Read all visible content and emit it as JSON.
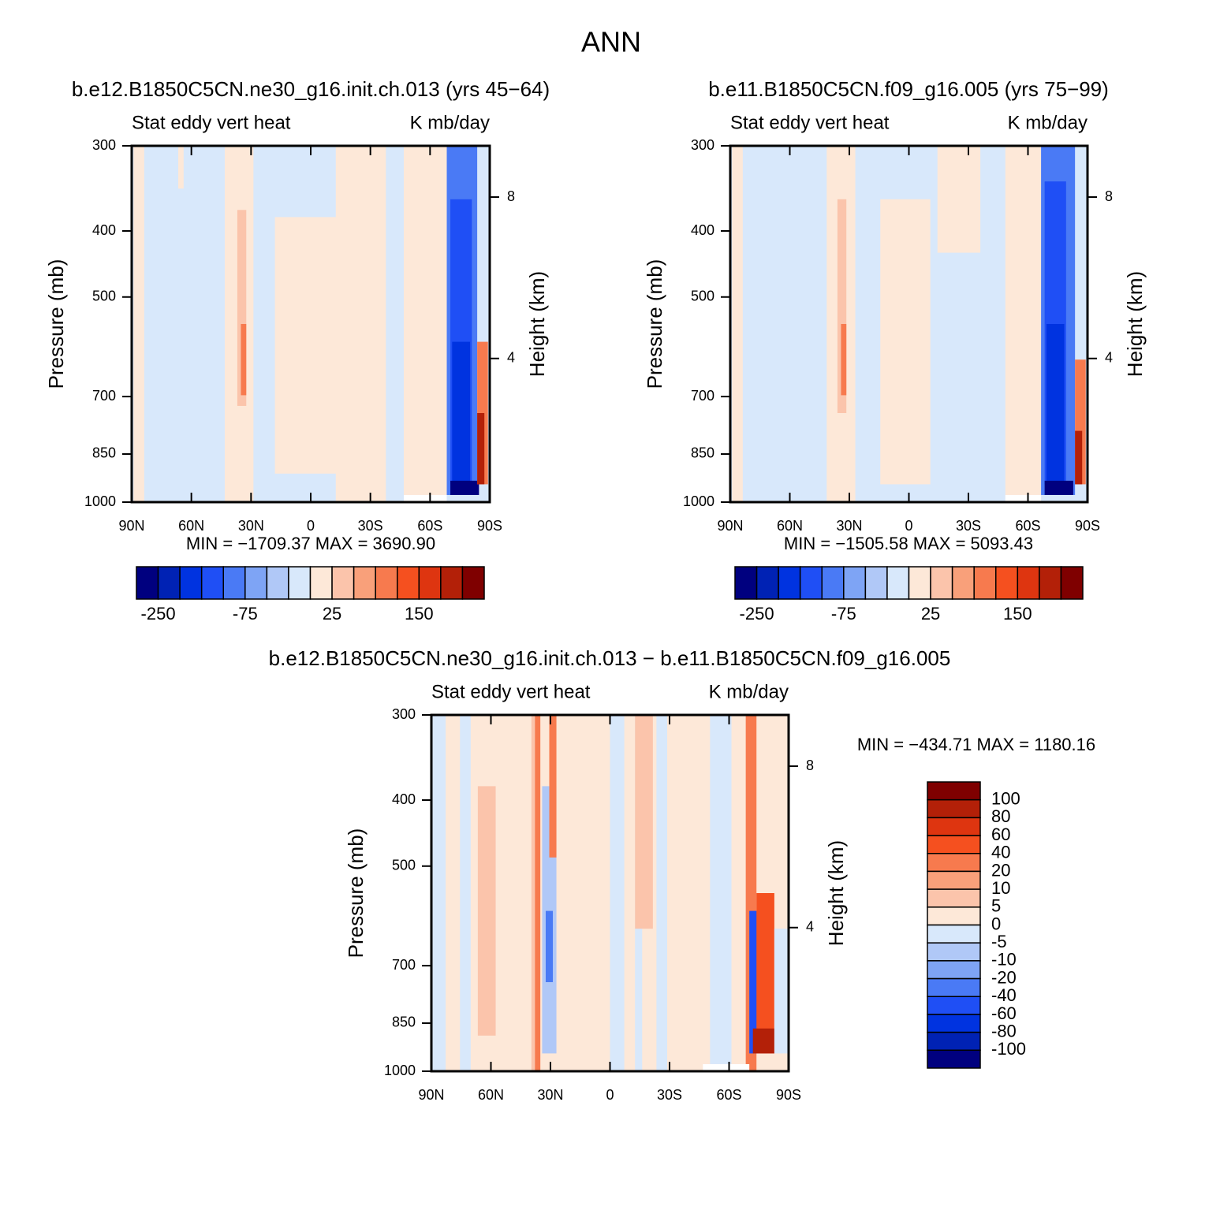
{
  "title": "ANN",
  "chart_data": [
    {
      "type": "contour",
      "title": "b.e12.B1850C5CN.ne30_g16.init.ch.013 (yrs 45−64)",
      "subtitle_left": "Stat eddy vert heat",
      "subtitle_right": "K mb/day",
      "ylabel": "Pressure (mb)",
      "y2label": "Height (km)",
      "xlim": [
        90,
        -90
      ],
      "xticks": [
        {
          "value": 90,
          "label": "90N"
        },
        {
          "value": 60,
          "label": "60N"
        },
        {
          "value": 30,
          "label": "30N"
        },
        0,
        {
          "value": -30,
          "label": "30S"
        },
        {
          "value": -60,
          "label": "60S"
        },
        {
          "value": -90,
          "label": "90S"
        }
      ],
      "ylim": [
        1000,
        300
      ],
      "ylog": true,
      "yticks": [
        300,
        400,
        500,
        700,
        850,
        1000
      ],
      "y2lim": [
        0.44,
        9.27
      ],
      "y2ticks": [
        4,
        8
      ],
      "stats": "MIN = −1709.37   MAX = 3690.90",
      "colorbar": {
        "orientation": "horizontal",
        "colors": [
          "#00007f",
          "#0022b4",
          "#0033e0",
          "#1f4ff5",
          "#4a7af5",
          "#7ea4f5",
          "#b0c8f7",
          "#d8e8fb",
          "#fde8d8",
          "#fbc4ab",
          "#f9a07a",
          "#f77a4e",
          "#f5501f",
          "#de3510",
          "#b32008",
          "#7f0000"
        ],
        "levels": [
          -250,
          -75,
          25,
          150
        ]
      }
    },
    {
      "type": "contour",
      "title": "b.e11.B1850C5CN.f09_g16.005 (yrs 75−99)",
      "subtitle_left": "Stat eddy vert heat",
      "subtitle_right": "K mb/day",
      "ylabel": "Pressure (mb)",
      "y2label": "Height (km)",
      "xlim": [
        90,
        -90
      ],
      "xticks": [
        {
          "value": 90,
          "label": "90N"
        },
        {
          "value": 60,
          "label": "60N"
        },
        {
          "value": 30,
          "label": "30N"
        },
        0,
        {
          "value": -30,
          "label": "30S"
        },
        {
          "value": -60,
          "label": "60S"
        },
        {
          "value": -90,
          "label": "90S"
        }
      ],
      "ylim": [
        1000,
        300
      ],
      "ylog": true,
      "yticks": [
        300,
        400,
        500,
        700,
        850,
        1000
      ],
      "y2lim": [
        0.44,
        9.27
      ],
      "y2ticks": [
        4,
        8
      ],
      "stats": "MIN = −1505.58   MAX = 5093.43",
      "colorbar": {
        "orientation": "horizontal",
        "colors": [
          "#00007f",
          "#0022b4",
          "#0033e0",
          "#1f4ff5",
          "#4a7af5",
          "#7ea4f5",
          "#b0c8f7",
          "#d8e8fb",
          "#fde8d8",
          "#fbc4ab",
          "#f9a07a",
          "#f77a4e",
          "#f5501f",
          "#de3510",
          "#b32008",
          "#7f0000"
        ],
        "levels": [
          -250,
          -75,
          25,
          150
        ]
      }
    },
    {
      "type": "contour",
      "title": "b.e12.B1850C5CN.ne30_g16.init.ch.013 − b.e11.B1850C5CN.f09_g16.005",
      "subtitle_left": "Stat eddy vert heat",
      "subtitle_right": "K mb/day",
      "ylabel": "Pressure (mb)",
      "y2label": "Height (km)",
      "xlim": [
        90,
        -90
      ],
      "xticks": [
        {
          "value": 90,
          "label": "90N"
        },
        {
          "value": 60,
          "label": "60N"
        },
        {
          "value": 30,
          "label": "30N"
        },
        0,
        {
          "value": -30,
          "label": "30S"
        },
        {
          "value": -60,
          "label": "60S"
        },
        {
          "value": -90,
          "label": "90S"
        }
      ],
      "ylim": [
        1000,
        300
      ],
      "ylog": true,
      "yticks": [
        300,
        400,
        500,
        700,
        850,
        1000
      ],
      "y2lim": [
        0.44,
        9.27
      ],
      "y2ticks": [
        4,
        8
      ],
      "stats": "MIN = −434.71   MAX = 1180.16",
      "colorbar": {
        "orientation": "vertical",
        "colors": [
          "#7f0000",
          "#b32008",
          "#de3510",
          "#f5501f",
          "#f77a4e",
          "#f9a07a",
          "#fbc4ab",
          "#fde8d8",
          "#d8e8fb",
          "#b0c8f7",
          "#7ea4f5",
          "#4a7af5",
          "#1f4ff5",
          "#0033e0",
          "#0022b4",
          "#00007f"
        ],
        "levels": [
          100,
          80,
          60,
          40,
          20,
          10,
          5,
          0,
          -5,
          -10,
          -20,
          -40,
          -60,
          -80,
          -100
        ]
      }
    }
  ]
}
